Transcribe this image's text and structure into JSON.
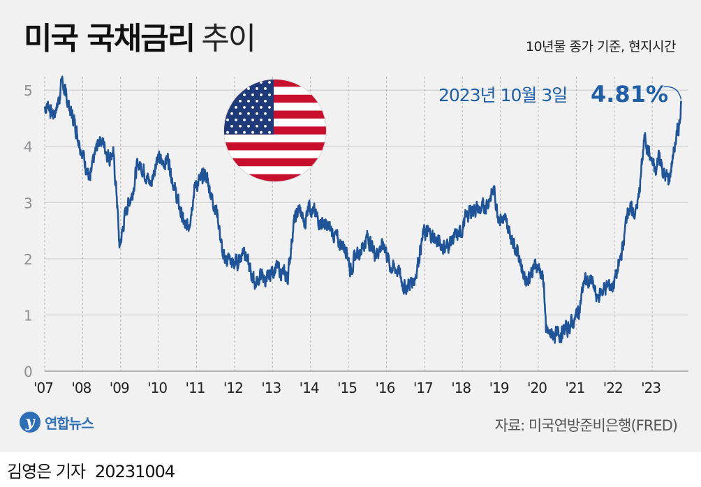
{
  "title_main": "미국 국채금리",
  "title_sub": "추이",
  "subtitle": "10년물 종가 기준, 현지시간",
  "annotation": {
    "date": "2023년 10월 3일",
    "value": "4.81%"
  },
  "source": "자료: 미국연방준비은행(FRED)",
  "logo_text": "연합뉴스",
  "credit": {
    "reporter": "김영은 기자",
    "date": "20231004"
  },
  "colors": {
    "line": "#1f5499",
    "annotation": "#1e5fa8",
    "background": "#f1f1f2"
  },
  "flag": "us-flag-icon",
  "chart_data": {
    "type": "line",
    "title": "미국 국채금리 추이",
    "ylim": [
      0,
      5.3
    ],
    "yticks": [
      0,
      1,
      2,
      3,
      4,
      5
    ],
    "xlim": [
      2007.0,
      2023.77
    ],
    "xticks": [
      {
        "x": 2007,
        "label": "'07"
      },
      {
        "x": 2008,
        "label": "'08"
      },
      {
        "x": 2009,
        "label": "'09"
      },
      {
        "x": 2010,
        "label": "'10"
      },
      {
        "x": 2011,
        "label": "'11"
      },
      {
        "x": 2012,
        "label": "'12"
      },
      {
        "x": 2013,
        "label": "'13"
      },
      {
        "x": 2014,
        "label": "'14"
      },
      {
        "x": 2015,
        "label": "'15"
      },
      {
        "x": 2016,
        "label": "'16"
      },
      {
        "x": 2017,
        "label": "'17"
      },
      {
        "x": 2018,
        "label": "'18"
      },
      {
        "x": 2019,
        "label": "'19"
      },
      {
        "x": 2020,
        "label": "'20"
      },
      {
        "x": 2021,
        "label": "'21"
      },
      {
        "x": 2022,
        "label": "'22"
      },
      {
        "x": 2023,
        "label": "'23"
      }
    ],
    "grid": true,
    "series": [
      {
        "x": [
          2007.0,
          2007.1,
          2007.2,
          2007.3,
          2007.4,
          2007.45,
          2007.55,
          2007.7,
          2007.8,
          2007.9,
          2008.0,
          2008.1,
          2008.2,
          2008.3,
          2008.45,
          2008.55,
          2008.7,
          2008.8,
          2008.9,
          2008.97,
          2009.05,
          2009.15,
          2009.3,
          2009.45,
          2009.6,
          2009.8,
          2009.95,
          2010.1,
          2010.25,
          2010.4,
          2010.55,
          2010.7,
          2010.8,
          2010.95,
          2011.1,
          2011.25,
          2011.4,
          2011.55,
          2011.7,
          2011.85,
          2011.95,
          2012.1,
          2012.25,
          2012.4,
          2012.55,
          2012.7,
          2012.85,
          2012.95,
          2013.1,
          2013.25,
          2013.4,
          2013.55,
          2013.7,
          2013.85,
          2013.95,
          2014.15,
          2014.35,
          2014.55,
          2014.75,
          2014.95,
          2015.05,
          2015.2,
          2015.4,
          2015.5,
          2015.7,
          2015.95,
          2016.1,
          2016.3,
          2016.5,
          2016.6,
          2016.75,
          2016.9,
          2016.98,
          2017.15,
          2017.35,
          2017.55,
          2017.75,
          2017.95,
          2018.1,
          2018.3,
          2018.5,
          2018.7,
          2018.83,
          2018.95,
          2019.1,
          2019.3,
          2019.5,
          2019.65,
          2019.8,
          2019.95,
          2020.05,
          2020.15,
          2020.2,
          2020.3,
          2020.5,
          2020.6,
          2020.75,
          2020.95,
          2021.1,
          2021.2,
          2021.4,
          2021.55,
          2021.75,
          2021.95,
          2022.1,
          2022.25,
          2022.35,
          2022.45,
          2022.55,
          2022.65,
          2022.8,
          2022.95,
          2023.1,
          2023.18,
          2023.3,
          2023.45,
          2023.55,
          2023.65,
          2023.72,
          2023.76
        ],
        "values": [
          4.68,
          4.75,
          4.55,
          4.65,
          4.9,
          5.22,
          4.9,
          4.6,
          4.4,
          4.1,
          3.9,
          3.6,
          3.4,
          3.8,
          4.15,
          4.05,
          3.8,
          3.9,
          3.1,
          2.2,
          2.5,
          2.9,
          3.15,
          3.7,
          3.6,
          3.3,
          3.8,
          3.7,
          3.8,
          3.3,
          2.9,
          2.55,
          2.6,
          3.3,
          3.4,
          3.5,
          3.1,
          2.8,
          2.0,
          2.0,
          1.9,
          1.95,
          2.2,
          1.8,
          1.55,
          1.7,
          1.6,
          1.75,
          1.85,
          1.75,
          1.65,
          2.6,
          2.9,
          2.6,
          3.0,
          2.75,
          2.6,
          2.5,
          2.3,
          2.2,
          1.8,
          2.05,
          2.25,
          2.4,
          2.1,
          2.25,
          1.85,
          1.8,
          1.45,
          1.55,
          1.65,
          2.2,
          2.45,
          2.45,
          2.3,
          2.2,
          2.35,
          2.45,
          2.75,
          2.9,
          2.85,
          3.05,
          3.23,
          2.75,
          2.7,
          2.4,
          2.05,
          1.6,
          1.75,
          1.9,
          1.8,
          1.55,
          0.7,
          0.65,
          0.65,
          0.68,
          0.75,
          0.92,
          1.15,
          1.6,
          1.6,
          1.3,
          1.5,
          1.5,
          1.8,
          2.3,
          2.9,
          2.85,
          2.8,
          3.1,
          4.2,
          3.8,
          3.5,
          3.9,
          3.5,
          3.4,
          3.85,
          4.2,
          4.4,
          4.81
        ]
      }
    ]
  }
}
